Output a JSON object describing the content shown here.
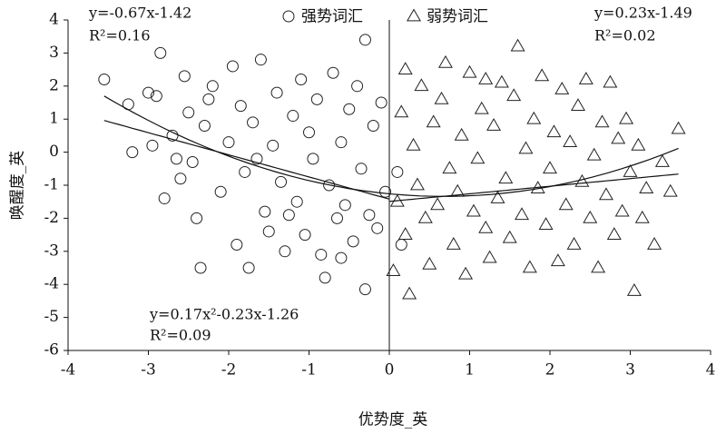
{
  "chart_data": {
    "type": "scatter",
    "x_label": "优势度_英",
    "y_label": "唤醒度_英",
    "xlim": [
      -4,
      4
    ],
    "xticks": [
      -4,
      -3,
      -2,
      -1,
      0,
      1,
      2,
      3,
      4
    ],
    "ylim": [
      -6,
      4
    ],
    "yticks": [
      -6,
      -5,
      -4,
      -3,
      -2,
      -1,
      0,
      1,
      2,
      3,
      4
    ],
    "legend": "top",
    "series": [
      {
        "name": "强势词汇",
        "marker": "circle",
        "color": "#222222",
        "x": [
          -3.55,
          -3.25,
          -3.2,
          -2.9,
          -2.85,
          -2.8,
          -2.7,
          -2.6,
          -2.55,
          -2.5,
          -2.45,
          -2.4,
          -2.35,
          -2.3,
          -2.2,
          -2.1,
          -2.0,
          -1.95,
          -1.9,
          -1.85,
          -1.8,
          -1.75,
          -1.7,
          -1.6,
          -1.55,
          -1.5,
          -1.45,
          -1.4,
          -1.35,
          -1.3,
          -1.2,
          -1.15,
          -1.1,
          -1.05,
          -1.0,
          -0.95,
          -0.9,
          -0.85,
          -0.8,
          -0.75,
          -0.7,
          -0.65,
          -0.6,
          -0.55,
          -0.5,
          -0.45,
          -0.4,
          -0.35,
          -0.3,
          -0.3,
          -0.25,
          -0.2,
          -0.15,
          -0.1,
          -0.05,
          -2.95,
          -3.0,
          -2.65,
          -1.25,
          -0.6,
          -2.25,
          -1.65,
          0.1,
          0.15
        ],
        "values": [
          2.2,
          1.45,
          0.0,
          1.7,
          3.0,
          -1.4,
          0.5,
          -0.8,
          2.3,
          1.2,
          -0.3,
          -2.0,
          -3.5,
          0.8,
          2.0,
          -1.2,
          0.3,
          2.6,
          -2.8,
          1.4,
          -0.6,
          -3.5,
          0.9,
          2.8,
          -1.8,
          -2.4,
          0.2,
          1.8,
          -0.9,
          -3.0,
          1.1,
          -1.5,
          2.2,
          -2.5,
          0.6,
          -0.2,
          1.6,
          -3.1,
          -3.8,
          -1.0,
          2.4,
          -2.0,
          0.3,
          -1.6,
          1.3,
          -2.7,
          2.0,
          -0.5,
          3.4,
          -4.15,
          -1.9,
          0.8,
          -2.3,
          1.5,
          -1.2,
          0.2,
          1.8,
          -0.2,
          -1.9,
          -3.2,
          1.6,
          -0.2,
          -0.6,
          -2.8
        ]
      },
      {
        "name": "弱势词汇",
        "marker": "triangle",
        "color": "#222222",
        "x": [
          0.05,
          0.1,
          0.15,
          0.2,
          0.25,
          0.3,
          0.35,
          0.4,
          0.45,
          0.5,
          0.55,
          0.6,
          0.65,
          0.7,
          0.75,
          0.8,
          0.85,
          0.9,
          0.95,
          1.0,
          1.05,
          1.1,
          1.15,
          1.2,
          1.25,
          1.3,
          1.35,
          1.4,
          1.45,
          1.5,
          1.55,
          1.6,
          1.65,
          1.7,
          1.75,
          1.8,
          1.85,
          1.9,
          1.95,
          2.0,
          2.05,
          2.1,
          2.15,
          2.2,
          2.25,
          2.3,
          2.35,
          2.4,
          2.45,
          2.5,
          2.55,
          2.6,
          2.65,
          2.7,
          2.75,
          2.8,
          2.85,
          2.9,
          2.95,
          3.0,
          3.05,
          3.1,
          3.15,
          3.2,
          3.3,
          3.4,
          3.5,
          3.6,
          0.2,
          1.2
        ],
        "values": [
          -3.6,
          -1.5,
          1.2,
          -2.5,
          -4.3,
          0.2,
          -1.0,
          2.0,
          -2.0,
          -3.4,
          0.9,
          -1.6,
          1.6,
          2.7,
          -0.5,
          -2.8,
          -1.2,
          0.5,
          -3.7,
          2.4,
          -1.8,
          -0.2,
          1.3,
          -2.3,
          -3.2,
          0.8,
          -1.4,
          2.1,
          -0.8,
          -2.6,
          1.7,
          3.2,
          -1.9,
          0.1,
          -3.5,
          1.0,
          -1.1,
          2.3,
          -2.2,
          -0.5,
          0.6,
          -3.3,
          1.9,
          -1.6,
          0.3,
          -2.8,
          1.4,
          -0.9,
          2.2,
          -2.0,
          -0.1,
          -3.5,
          0.9,
          -1.3,
          2.1,
          -2.5,
          0.4,
          -1.8,
          1.0,
          -0.6,
          -4.2,
          0.2,
          -2.0,
          -1.1,
          -2.8,
          -0.3,
          -1.2,
          0.7,
          2.5,
          2.2
        ]
      }
    ],
    "trendlines": [
      {
        "coefficients": [
          -0.67,
          -1.42
        ],
        "x_range": [
          -3.55,
          0
        ],
        "equation": "y=-0.67x-1.42",
        "r2": "R²=0.16"
      },
      {
        "coefficients": [
          0.17,
          -0.23,
          -1.26
        ],
        "x_range": [
          -3.55,
          3.6
        ],
        "equation": "y=0.17x²-0.23x-1.26",
        "r2": "R²=0.09"
      },
      {
        "coefficients": [
          0.23,
          -1.49
        ],
        "x_range": [
          0,
          3.6
        ],
        "equation": "y=0.23x-1.49",
        "r2": "R²=0.02"
      }
    ]
  }
}
